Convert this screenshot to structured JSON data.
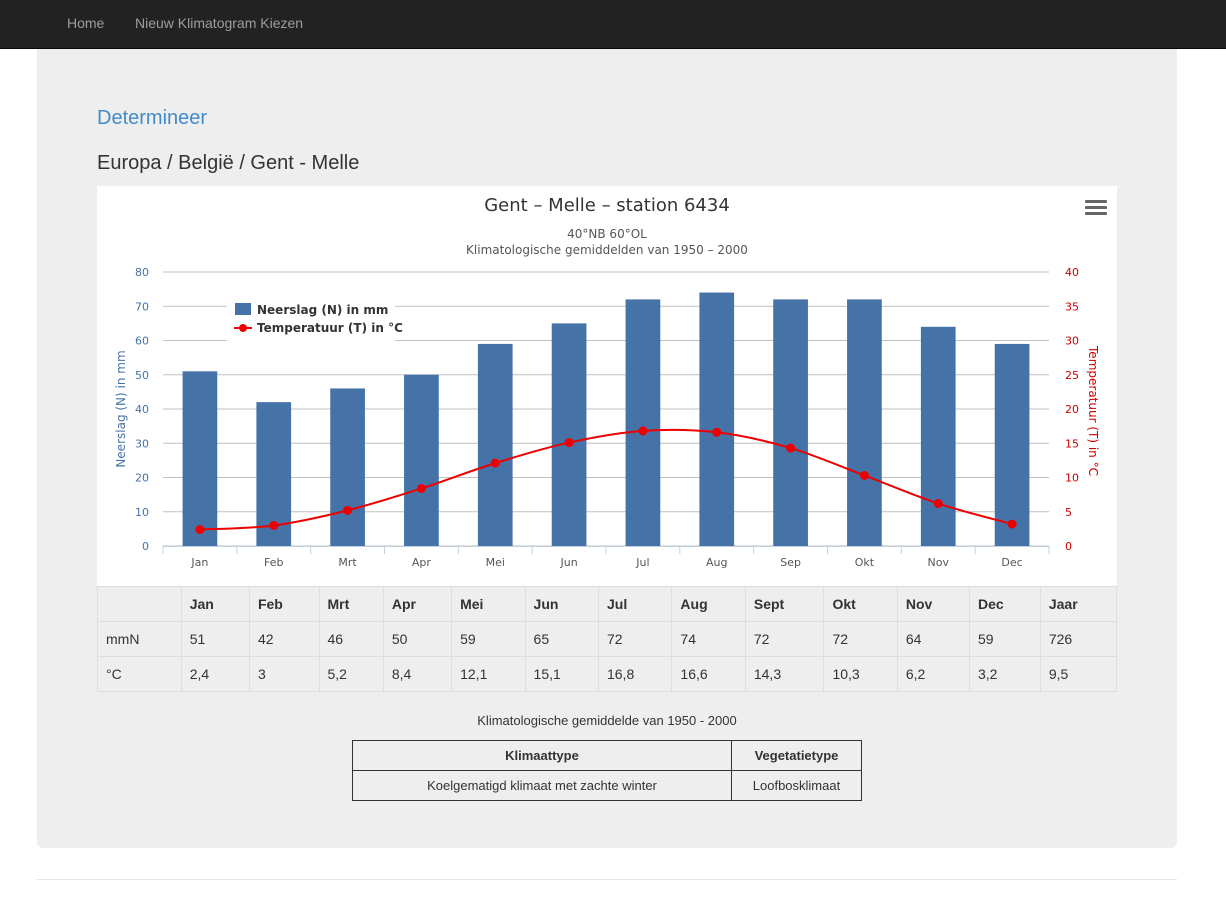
{
  "nav": {
    "items": [
      {
        "label": "Home"
      },
      {
        "label": "Nieuw Klimatogram Kiezen"
      }
    ]
  },
  "page": {
    "heading": "Determineer",
    "breadcrumb": "Europa / België / Gent - Melle"
  },
  "chart_data": {
    "type": "bar+line",
    "title": "Gent – Melle – station 6434",
    "subtitle_1": "40°NB 60°OL",
    "subtitle_2": "Klimatologische gemiddelden van 1950 – 2000",
    "categories": [
      "Jan",
      "Feb",
      "Mrt",
      "Apr",
      "Mei",
      "Jun",
      "Jul",
      "Aug",
      "Sep",
      "Okt",
      "Nov",
      "Dec"
    ],
    "series": [
      {
        "name": "Neerslag (N) in mm",
        "type": "bar",
        "axis": "left",
        "color": "#4572a7",
        "values": [
          51,
          42,
          46,
          50,
          59,
          65,
          72,
          74,
          72,
          72,
          64,
          59
        ]
      },
      {
        "name": "Temperatuur (T) in °C",
        "type": "line",
        "axis": "right",
        "color": "#ee0000",
        "values": [
          2.4,
          3,
          5.2,
          8.4,
          12.1,
          15.1,
          16.8,
          16.6,
          14.3,
          10.3,
          6.2,
          3.2
        ]
      }
    ],
    "y_left": {
      "label": "Neerslag (N) in mm",
      "min": 0,
      "max": 80,
      "ticks": [
        0,
        10,
        20,
        30,
        40,
        50,
        60,
        70,
        80
      ]
    },
    "y_right": {
      "label": "Temperatuur (T) in °C",
      "min": 0,
      "max": 40,
      "ticks": [
        0,
        5,
        10,
        15,
        20,
        25,
        30,
        35,
        40
      ]
    },
    "grid": true,
    "legend_position": "top-left"
  },
  "table": {
    "headers": [
      "",
      "Jan",
      "Feb",
      "Mrt",
      "Apr",
      "Mei",
      "Jun",
      "Jul",
      "Aug",
      "Sept",
      "Okt",
      "Nov",
      "Dec",
      "Jaar"
    ],
    "rows": [
      [
        "mmN",
        "51",
        "42",
        "46",
        "50",
        "59",
        "65",
        "72",
        "74",
        "72",
        "72",
        "64",
        "59",
        "726"
      ],
      [
        "°C",
        "2,4",
        "3",
        "5,2",
        "8,4",
        "12,1",
        "15,1",
        "16,8",
        "16,6",
        "14,3",
        "10,3",
        "6,2",
        "3,2",
        "9,5"
      ]
    ]
  },
  "caption": "Klimatologische gemiddelde van 1950 - 2000",
  "types": {
    "headers": [
      "Klimaattype",
      "Vegetatietype"
    ],
    "values": [
      "Koelgematigd klimaat met zachte winter",
      "Loofbosklimaat"
    ]
  },
  "icons": {
    "chart_menu": "hamburger-menu-icon"
  }
}
